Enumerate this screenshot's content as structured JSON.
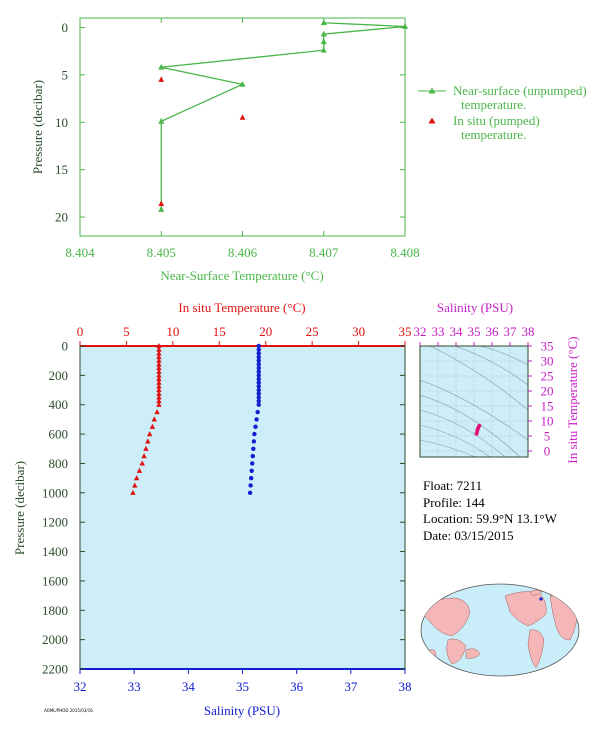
{
  "colors": {
    "green": "#49b649",
    "red": "#e01010",
    "blue": "#1020d0",
    "magenta": "#c61fc6",
    "axis_dark": "#2b4b2b",
    "plot_bg": "#cdeef8",
    "land": "#f4b6b6",
    "ocean": "#c9eef9"
  },
  "info": {
    "float": "Float:  7211",
    "profile": "Profile:  144",
    "location": "Location:  59.9°N  13.1°W",
    "date": "Date:  03/15/2015"
  },
  "footer": "AOML/PHOD 2015/03/16",
  "chart_data": [
    {
      "type": "line",
      "title": "",
      "xlabel": "Near-Surface Temperature (°C)",
      "ylabel": "Pressure (decibar)",
      "xlim": [
        8.404,
        8.408
      ],
      "ylim": [
        22,
        -1
      ],
      "x_ticks": [
        "8.404",
        "8.405",
        "8.406",
        "8.407",
        "8.408"
      ],
      "y_ticks": [
        "0",
        "5",
        "10",
        "15",
        "20"
      ],
      "legend_position": "right",
      "series": [
        {
          "name": "Near-surface (unpumped) temperature.",
          "marker": "triangle-line",
          "color": "#49b649",
          "points": [
            {
              "x": 8.407,
              "y": -0.5
            },
            {
              "x": 8.408,
              "y": -0.1
            },
            {
              "x": 8.407,
              "y": 0.7
            },
            {
              "x": 8.407,
              "y": 1.5
            },
            {
              "x": 8.407,
              "y": 2.4
            },
            {
              "x": 8.405,
              "y": 4.2
            },
            {
              "x": 8.406,
              "y": 6.0
            },
            {
              "x": 8.405,
              "y": 9.9
            },
            {
              "x": 8.405,
              "y": 19.2
            }
          ]
        },
        {
          "name": "In situ (pumped) temperature.",
          "marker": "triangle",
          "color": "#e01010",
          "points": [
            {
              "x": 8.405,
              "y": 5.5
            },
            {
              "x": 8.406,
              "y": 9.5
            },
            {
              "x": 8.405,
              "y": 18.6
            }
          ]
        }
      ]
    },
    {
      "type": "scatter",
      "title": "",
      "ylabel": "Pressure (decibar)",
      "ylim": [
        2200,
        0
      ],
      "y_ticks": [
        "0",
        "200",
        "400",
        "600",
        "800",
        "1000",
        "1200",
        "1400",
        "1600",
        "1800",
        "2000",
        "2200"
      ],
      "top_axis": {
        "label": "In situ Temperature (°C)",
        "range": [
          0,
          35
        ],
        "ticks": [
          "0",
          "5",
          "10",
          "15",
          "20",
          "25",
          "30",
          "35"
        ]
      },
      "bottom_axis": {
        "label": "Salinity (PSU)",
        "range": [
          32,
          38
        ],
        "ticks": [
          "32",
          "33",
          "34",
          "35",
          "36",
          "37",
          "38"
        ]
      },
      "series": [
        {
          "name": "In situ Temperature (°C)",
          "color": "#e01010",
          "marker": "triangle",
          "points": [
            {
              "p": 0,
              "v": 8.5
            },
            {
              "p": 25,
              "v": 8.5
            },
            {
              "p": 50,
              "v": 8.5
            },
            {
              "p": 75,
              "v": 8.5
            },
            {
              "p": 100,
              "v": 8.5
            },
            {
              "p": 125,
              "v": 8.5
            },
            {
              "p": 150,
              "v": 8.5
            },
            {
              "p": 175,
              "v": 8.5
            },
            {
              "p": 200,
              "v": 8.5
            },
            {
              "p": 225,
              "v": 8.5
            },
            {
              "p": 250,
              "v": 8.5
            },
            {
              "p": 275,
              "v": 8.5
            },
            {
              "p": 300,
              "v": 8.5
            },
            {
              "p": 325,
              "v": 8.5
            },
            {
              "p": 350,
              "v": 8.5
            },
            {
              "p": 375,
              "v": 8.5
            },
            {
              "p": 400,
              "v": 8.5
            },
            {
              "p": 450,
              "v": 8.3
            },
            {
              "p": 500,
              "v": 8.0
            },
            {
              "p": 550,
              "v": 7.8
            },
            {
              "p": 600,
              "v": 7.5
            },
            {
              "p": 650,
              "v": 7.3
            },
            {
              "p": 700,
              "v": 7.1
            },
            {
              "p": 750,
              "v": 6.9
            },
            {
              "p": 800,
              "v": 6.7
            },
            {
              "p": 850,
              "v": 6.4
            },
            {
              "p": 900,
              "v": 6.1
            },
            {
              "p": 950,
              "v": 5.9
            },
            {
              "p": 1000,
              "v": 5.7
            }
          ]
        },
        {
          "name": "Salinity (PSU)",
          "color": "#1020d0",
          "marker": "circle",
          "points": [
            {
              "p": 0,
              "v": 35.3
            },
            {
              "p": 25,
              "v": 35.3
            },
            {
              "p": 50,
              "v": 35.3
            },
            {
              "p": 75,
              "v": 35.3
            },
            {
              "p": 100,
              "v": 35.3
            },
            {
              "p": 125,
              "v": 35.3
            },
            {
              "p": 150,
              "v": 35.3
            },
            {
              "p": 175,
              "v": 35.3
            },
            {
              "p": 200,
              "v": 35.3
            },
            {
              "p": 225,
              "v": 35.3
            },
            {
              "p": 250,
              "v": 35.3
            },
            {
              "p": 275,
              "v": 35.3
            },
            {
              "p": 300,
              "v": 35.3
            },
            {
              "p": 325,
              "v": 35.3
            },
            {
              "p": 350,
              "v": 35.3
            },
            {
              "p": 375,
              "v": 35.3
            },
            {
              "p": 400,
              "v": 35.3
            },
            {
              "p": 450,
              "v": 35.28
            },
            {
              "p": 500,
              "v": 35.26
            },
            {
              "p": 550,
              "v": 35.24
            },
            {
              "p": 600,
              "v": 35.22
            },
            {
              "p": 650,
              "v": 35.21
            },
            {
              "p": 700,
              "v": 35.2
            },
            {
              "p": 750,
              "v": 35.19
            },
            {
              "p": 800,
              "v": 35.18
            },
            {
              "p": 850,
              "v": 35.17
            },
            {
              "p": 900,
              "v": 35.16
            },
            {
              "p": 950,
              "v": 35.15
            },
            {
              "p": 1000,
              "v": 35.14
            }
          ]
        }
      ]
    },
    {
      "type": "scatter",
      "title": "",
      "xlabel": "Salinity (PSU)",
      "ylabel": "In situ Temperature (°C)",
      "xlim": [
        32,
        38
      ],
      "ylim": [
        -2,
        35
      ],
      "x_ticks": [
        "32",
        "33",
        "34",
        "35",
        "36",
        "37",
        "38"
      ],
      "y_ticks": [
        "0",
        "5",
        "10",
        "15",
        "20",
        "25",
        "30",
        "35"
      ],
      "series": [
        {
          "name": "T-S",
          "color": "#e0107a",
          "points": [
            {
              "x": 35.3,
              "y": 8.5
            },
            {
              "x": 35.28,
              "y": 8.3
            },
            {
              "x": 35.26,
              "y": 8.0
            },
            {
              "x": 35.24,
              "y": 7.8
            },
            {
              "x": 35.22,
              "y": 7.5
            },
            {
              "x": 35.21,
              "y": 7.3
            },
            {
              "x": 35.2,
              "y": 7.1
            },
            {
              "x": 35.19,
              "y": 6.9
            },
            {
              "x": 35.18,
              "y": 6.7
            },
            {
              "x": 35.17,
              "y": 6.4
            },
            {
              "x": 35.16,
              "y": 6.1
            },
            {
              "x": 35.15,
              "y": 5.9
            },
            {
              "x": 35.14,
              "y": 5.7
            }
          ]
        }
      ]
    }
  ]
}
